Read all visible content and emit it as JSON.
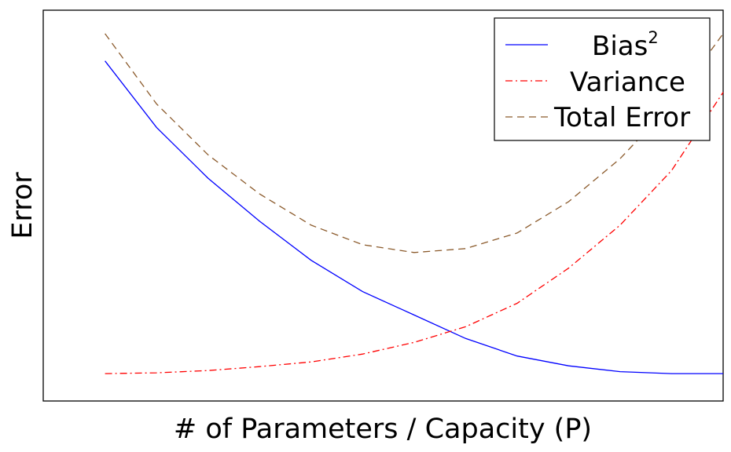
{
  "chart_data": {
    "type": "line",
    "title": "",
    "xlabel": "# of Parameters / Capacity (P)",
    "ylabel": "Error",
    "xticks": false,
    "yticks": false,
    "grid": false,
    "xlim": [
      -1.2,
      12
    ],
    "ylim": [
      -0.05,
      0.95
    ],
    "legend_position": "top-right",
    "x": [
      0,
      1,
      2,
      3,
      4,
      5,
      6,
      7,
      8,
      9,
      10,
      11,
      12
    ],
    "series": [
      {
        "name": "Bias",
        "name_superscript": "2",
        "color": "#0000ff",
        "dash": "solid",
        "values": [
          0.82,
          0.65,
          0.52,
          0.41,
          0.31,
          0.23,
          0.17,
          0.11,
          0.065,
          0.04,
          0.025,
          0.02,
          0.02
        ]
      },
      {
        "name": "Variance",
        "color": "#ff0000",
        "dash": "dashdot",
        "values": [
          0.02,
          0.022,
          0.028,
          0.038,
          0.05,
          0.07,
          0.1,
          0.14,
          0.2,
          0.29,
          0.4,
          0.54,
          0.74
        ]
      },
      {
        "name": "Total Error",
        "color": "#8b5a2b",
        "dash": "dashed",
        "values": [
          0.89,
          0.71,
          0.58,
          0.48,
          0.4,
          0.35,
          0.33,
          0.34,
          0.38,
          0.46,
          0.57,
          0.71,
          0.89
        ]
      }
    ]
  }
}
